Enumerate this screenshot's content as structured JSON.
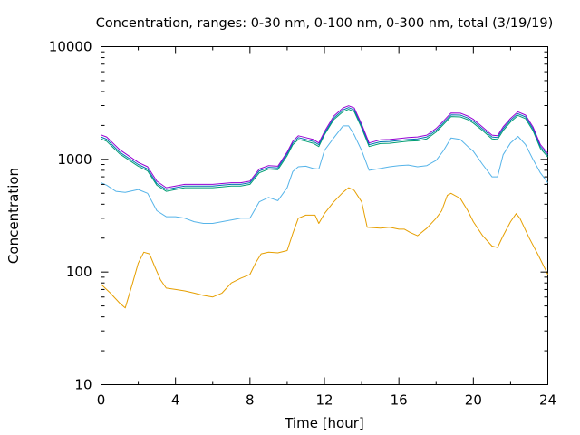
{
  "chart_data": {
    "type": "line",
    "title": "Concentration, ranges: 0-30 nm, 0-100 nm, 0-300 nm, total (3/19/19)",
    "xlabel": "Time [hour]",
    "ylabel": "Concentration",
    "xlim": [
      0,
      24
    ],
    "ylim": [
      10,
      10000
    ],
    "yscale": "log",
    "grid": false,
    "x_ticks": [
      0,
      4,
      8,
      12,
      16,
      20,
      24
    ],
    "x_tick_labels": [
      "0",
      "4",
      "8",
      "12",
      "16",
      "20",
      "24"
    ],
    "y_ticks": [
      10,
      100,
      1000,
      10000
    ],
    "y_tick_labels": [
      "10",
      "100",
      "1000",
      "10000"
    ],
    "series": [
      {
        "color": "#e69f00",
        "x": [
          0,
          0.5,
          1,
          1.3,
          1.7,
          2,
          2.3,
          2.6,
          2.9,
          3.2,
          3.5,
          4,
          4.5,
          5,
          5.5,
          6,
          6.5,
          7,
          7.5,
          8,
          8.3,
          8.6,
          9,
          9.5,
          10,
          10.3,
          10.6,
          11,
          11.5,
          11.7,
          12,
          12.5,
          13,
          13.3,
          13.6,
          14,
          14.3,
          15,
          15.5,
          16,
          16.3,
          16.6,
          17,
          17.5,
          18,
          18.3,
          18.6,
          18.8,
          19.3,
          19.7,
          20,
          20.5,
          21,
          21.3,
          21.6,
          22,
          22.3,
          22.5,
          23,
          23.5,
          24
        ],
        "y": [
          78,
          65,
          53,
          48,
          80,
          120,
          150,
          145,
          110,
          85,
          72,
          70,
          68,
          65,
          62,
          60,
          65,
          80,
          88,
          95,
          120,
          145,
          150,
          148,
          155,
          220,
          300,
          320,
          320,
          270,
          330,
          420,
          510,
          560,
          530,
          420,
          250,
          245,
          250,
          240,
          240,
          225,
          210,
          245,
          300,
          350,
          480,
          500,
          450,
          350,
          280,
          210,
          170,
          165,
          210,
          280,
          330,
          300,
          200,
          140,
          95
        ]
      },
      {
        "color": "#56b4e9",
        "x": [
          0,
          0.3,
          0.8,
          1.3,
          2,
          2.5,
          3,
          3.5,
          4,
          4.5,
          5,
          5.5,
          6,
          6.5,
          7,
          7.5,
          8,
          8.5,
          9,
          9.5,
          10,
          10.3,
          10.6,
          11,
          11.4,
          11.7,
          12,
          12.5,
          13,
          13.3,
          13.6,
          14,
          14.4,
          15,
          15.5,
          16,
          16.5,
          17,
          17.5,
          18,
          18.4,
          18.8,
          19.3,
          19.7,
          20,
          20.5,
          21,
          21.3,
          21.6,
          22,
          22.4,
          22.8,
          23.2,
          23.6,
          24
        ],
        "y": [
          620,
          590,
          520,
          510,
          540,
          500,
          350,
          310,
          310,
          300,
          280,
          270,
          270,
          280,
          290,
          300,
          300,
          420,
          460,
          430,
          560,
          780,
          860,
          870,
          830,
          820,
          1200,
          1550,
          1980,
          1980,
          1650,
          1200,
          800,
          830,
          860,
          880,
          890,
          860,
          880,
          980,
          1200,
          1550,
          1500,
          1300,
          1180,
          900,
          700,
          700,
          1100,
          1400,
          1600,
          1350,
          1000,
          760,
          620
        ]
      },
      {
        "color": "#009e73",
        "x": [
          0,
          0.3,
          1,
          2,
          2.5,
          3,
          3.5,
          4,
          4.5,
          5,
          5.5,
          6,
          6.5,
          7,
          7.5,
          8,
          8.5,
          9,
          9.5,
          10,
          10.3,
          10.6,
          11,
          11.4,
          11.7,
          12,
          12.5,
          13,
          13.3,
          13.6,
          14,
          14.4,
          15,
          15.5,
          16,
          16.5,
          17,
          17.5,
          18,
          18.4,
          18.8,
          19.3,
          19.7,
          20,
          20.5,
          21,
          21.3,
          21.6,
          22,
          22.4,
          22.8,
          23.2,
          23.6,
          24
        ],
        "y": [
          1520,
          1450,
          1120,
          870,
          790,
          590,
          520,
          540,
          560,
          560,
          560,
          560,
          570,
          580,
          580,
          600,
          760,
          820,
          810,
          1080,
          1350,
          1500,
          1450,
          1390,
          1300,
          1650,
          2250,
          2650,
          2780,
          2650,
          1900,
          1300,
          1380,
          1390,
          1420,
          1450,
          1460,
          1520,
          1750,
          2050,
          2400,
          2380,
          2250,
          2100,
          1800,
          1520,
          1500,
          1800,
          2150,
          2450,
          2300,
          1800,
          1250,
          1050
        ]
      },
      {
        "color": "#0072b2",
        "x": [
          0,
          0.3,
          1,
          2,
          2.5,
          3,
          3.5,
          4,
          4.5,
          5,
          5.5,
          6,
          6.5,
          7,
          7.5,
          8,
          8.5,
          9,
          9.5,
          10,
          10.3,
          10.6,
          11,
          11.4,
          11.7,
          12,
          12.5,
          13,
          13.3,
          13.6,
          14,
          14.4,
          15,
          15.5,
          16,
          16.5,
          17,
          17.5,
          18,
          18.4,
          18.8,
          19.3,
          19.7,
          20,
          20.5,
          21,
          21.3,
          21.6,
          22,
          22.4,
          22.8,
          23.2,
          23.6,
          24
        ],
        "y": [
          1580,
          1510,
          1160,
          900,
          820,
          610,
          540,
          560,
          580,
          580,
          580,
          580,
          590,
          600,
          600,
          620,
          790,
          850,
          840,
          1120,
          1400,
          1560,
          1500,
          1440,
          1350,
          1700,
          2330,
          2750,
          2880,
          2750,
          1970,
          1350,
          1430,
          1440,
          1470,
          1500,
          1520,
          1580,
          1810,
          2120,
          2480,
          2470,
          2330,
          2180,
          1860,
          1580,
          1560,
          1870,
          2230,
          2540,
          2380,
          1870,
          1300,
          1090
        ]
      },
      {
        "color": "#9400d3",
        "x": [
          0,
          0.3,
          1,
          2,
          2.5,
          3,
          3.5,
          4,
          4.5,
          5,
          5.5,
          6,
          6.5,
          7,
          7.5,
          8,
          8.5,
          9,
          9.5,
          10,
          10.3,
          10.6,
          11,
          11.4,
          11.7,
          12,
          12.5,
          13,
          13.3,
          13.6,
          14,
          14.4,
          15,
          15.5,
          16,
          16.5,
          17,
          17.5,
          18,
          18.4,
          18.8,
          19.3,
          19.7,
          20,
          20.5,
          21,
          21.3,
          21.6,
          22,
          22.4,
          22.8,
          23.2,
          23.6,
          24
        ],
        "y": [
          1650,
          1580,
          1220,
          940,
          860,
          640,
          560,
          580,
          600,
          600,
          600,
          600,
          610,
          620,
          620,
          640,
          820,
          880,
          870,
          1160,
          1450,
          1620,
          1560,
          1500,
          1400,
          1760,
          2420,
          2860,
          2990,
          2860,
          2050,
          1400,
          1490,
          1500,
          1530,
          1560,
          1580,
          1640,
          1880,
          2200,
          2580,
          2570,
          2420,
          2270,
          1930,
          1640,
          1620,
          1940,
          2310,
          2640,
          2470,
          1940,
          1350,
          1130
        ]
      }
    ]
  }
}
